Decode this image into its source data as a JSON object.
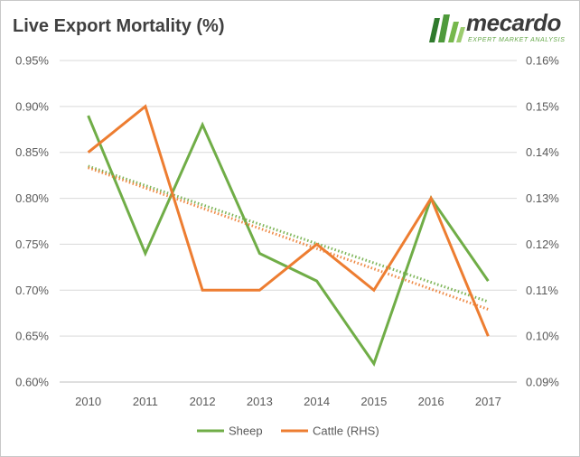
{
  "title": "Live Export Mortality (%)",
  "logo": {
    "word": "mecardo",
    "tagline": "EXPERT MARKET ANALYSIS"
  },
  "chart_data": {
    "type": "line",
    "title": "Live Export Mortality (%)",
    "categories": [
      "2010",
      "2011",
      "2012",
      "2013",
      "2014",
      "2015",
      "2016",
      "2017"
    ],
    "y_left": {
      "range": [
        0.6,
        0.95
      ],
      "ticks": [
        "0.60%",
        "0.65%",
        "0.70%",
        "0.75%",
        "0.80%",
        "0.85%",
        "0.90%",
        "0.95%"
      ]
    },
    "y_right": {
      "range": [
        0.09,
        0.16
      ],
      "ticks": [
        "0.09%",
        "0.10%",
        "0.11%",
        "0.12%",
        "0.13%",
        "0.14%",
        "0.15%",
        "0.16%"
      ]
    },
    "series": [
      {
        "name": "Sheep",
        "axis": "left",
        "color": "#70ad47",
        "values": [
          0.89,
          0.74,
          0.88,
          0.74,
          0.71,
          0.62,
          0.8,
          0.71
        ],
        "trendline": {
          "type": "linear",
          "style": "dotted"
        }
      },
      {
        "name": "Cattle (RHS)",
        "axis": "right",
        "color": "#ed7d31",
        "values": [
          0.14,
          0.15,
          0.11,
          0.11,
          0.12,
          0.11,
          0.13,
          0.1
        ],
        "trendline": {
          "type": "linear",
          "style": "dotted"
        }
      }
    ],
    "grid": "horizontal",
    "legend": "bottom"
  }
}
